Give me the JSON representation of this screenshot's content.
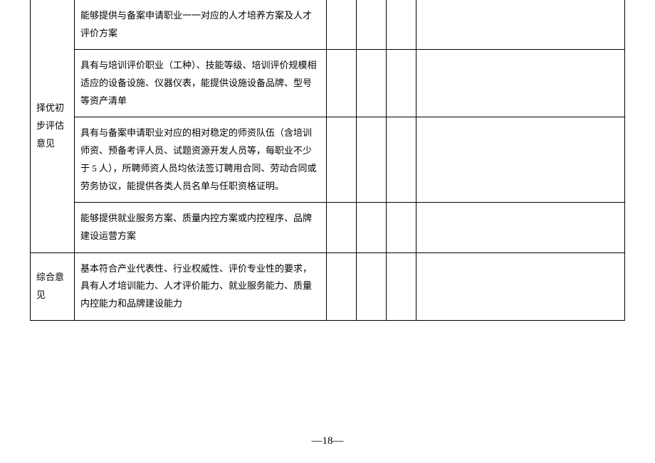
{
  "table": {
    "section1_label": "择优初步评估意见",
    "section1_rows": [
      "能够提供与备案申请职业一一对应的人才培养方案及人才评价方案",
      "具有与培训评价职业（工种）、技能等级、培训评价规模相适应的设备设施、仪器仪表，能提供设施设备品牌、型号等资产清单",
      "具有与备案申请职业对应的相对稳定的师资队伍（含培训师资、预备考评人员、试题资源开发人员等，每职业不少于 5 人），所聘师资人员均依法签订聘用合同、劳动合同或劳务协议，能提供各类人员名单与任职资格证明。",
      "能够提供就业服务方案、质量内控方案或内控程序、品牌建设运营方案"
    ],
    "section2_label": "综合意见",
    "section2_text": "基本符合产业代表性、行业权威性、评价专业性的要求，具有人才培训能力、人才评价能力、就业服务能力、质量内控能力和品牌建设能力"
  },
  "page_number": "—18—"
}
